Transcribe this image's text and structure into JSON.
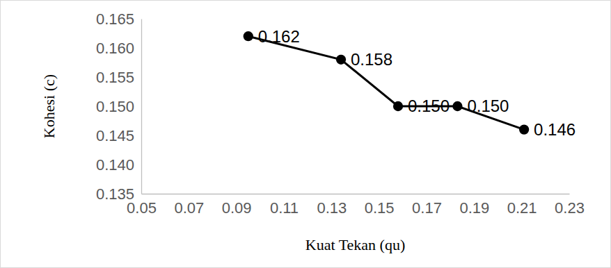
{
  "chart_data": {
    "type": "line",
    "x_label": "Kuat Tekan (qu)",
    "y_label": "Kohesi (c)",
    "x": [
      0.095,
      0.134,
      0.158,
      0.183,
      0.211
    ],
    "values": [
      0.162,
      0.158,
      0.15,
      0.15,
      0.146
    ],
    "value_labels": [
      "0.162",
      "0.158",
      "0.150",
      "0.150",
      "0.146"
    ],
    "data_labels": true,
    "color": "#000000",
    "marker": "circle",
    "line_style": "solid",
    "grid": false,
    "xlim": [
      0.05,
      0.23
    ],
    "xticks": [
      0.05,
      0.07,
      0.09,
      0.11,
      0.13,
      0.15,
      0.17,
      0.19,
      0.21,
      0.23
    ],
    "ylim": [
      0.135,
      0.165
    ],
    "yticks": [
      0.135,
      {
        "value": 0.14,
        "label": "0.140"
      },
      0.145,
      {
        "value": 0.15,
        "label": "0.150"
      },
      0.155,
      {
        "value": 0.16,
        "label": "0.160"
      },
      0.165
    ]
  }
}
